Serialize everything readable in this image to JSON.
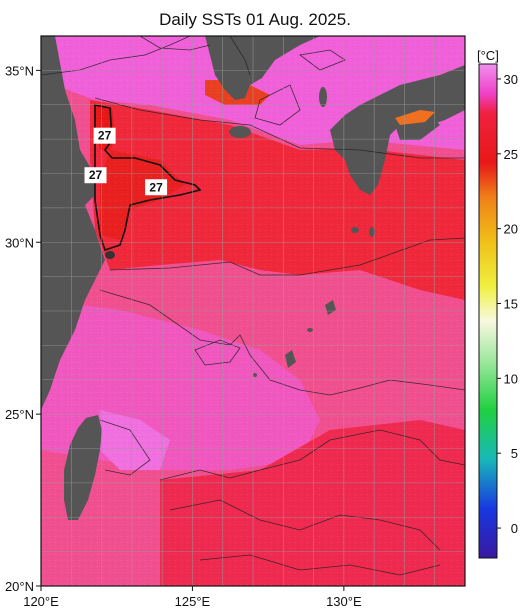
{
  "title": "Daily SSTs 01 Aug. 2025.",
  "map": {
    "lon_range": [
      120,
      134
    ],
    "lat_range": [
      20,
      36
    ],
    "lon_ticks": [
      {
        "value": 120,
        "label": "120°E"
      },
      {
        "value": 125,
        "label": "125°E"
      },
      {
        "value": 130,
        "label": "130°E"
      }
    ],
    "lat_ticks": [
      {
        "value": 35,
        "label": "35°N"
      },
      {
        "value": 30,
        "label": "30°N"
      },
      {
        "value": 25,
        "label": "25°N"
      },
      {
        "value": 20,
        "label": "20°N"
      }
    ],
    "isotherm_labels": [
      {
        "text": "27",
        "lon": 122.1,
        "lat": 33.1
      },
      {
        "text": "27",
        "lon": 121.8,
        "lat": 31.95
      },
      {
        "text": "27",
        "lon": 123.8,
        "lat": 31.6
      }
    ],
    "colors": {
      "land": "#555555",
      "warm_pink": "#f060d8",
      "hot_red": "#f02a3e",
      "cooler_red": "#e81818"
    }
  },
  "colorbar": {
    "unit": "[°C]",
    "min": -2,
    "max": 31,
    "ticks": [
      {
        "value": 30,
        "label": "30"
      },
      {
        "value": 25,
        "label": "25"
      },
      {
        "value": 20,
        "label": "20"
      },
      {
        "value": 15,
        "label": "15"
      },
      {
        "value": 10,
        "label": "10"
      },
      {
        "value": 5,
        "label": "5"
      },
      {
        "value": 0,
        "label": "0"
      }
    ]
  }
}
